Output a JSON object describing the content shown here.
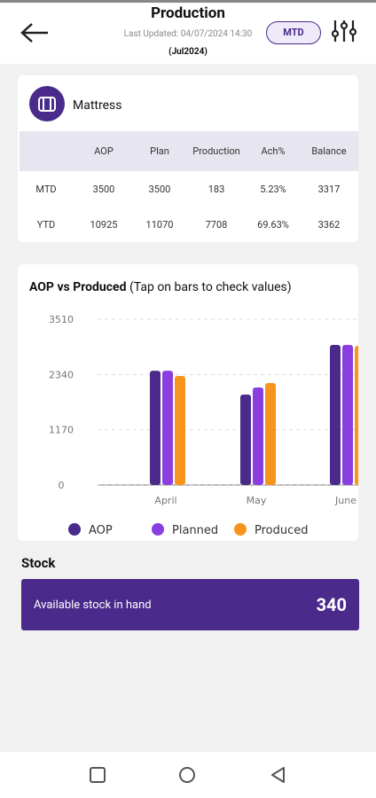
{
  "header": {
    "title": "Production",
    "last_updated": "Last Updated: 04/07/2024 14:30",
    "period": "(Jul2024)",
    "toggle": "MTD"
  },
  "summary": {
    "title": "Mattress",
    "columns": [
      "AOP",
      "Plan",
      "Production",
      "Ach%",
      "Balance"
    ],
    "rows": [
      {
        "label": "MTD",
        "cells": [
          3500,
          3500,
          183,
          "5.23%",
          3317
        ]
      },
      {
        "label": "YTD",
        "cells": [
          10925,
          11070,
          7708,
          "69.63%",
          3362
        ]
      }
    ]
  },
  "chart_data": {
    "type": "bar",
    "title": "AOP vs Produced",
    "subtitle": "(Tap on bars to check values)",
    "categories": [
      "April",
      "May",
      "June"
    ],
    "series": [
      {
        "name": "AOP",
        "color": "#4a2a8a",
        "values": [
          2420,
          1915,
          2966
        ]
      },
      {
        "name": "Planned",
        "color": "#8a3ee0",
        "values": [
          2420,
          2065,
          2966
        ]
      },
      {
        "name": "Produced",
        "color": "#f7941d",
        "values": [
          2309,
          2158,
          2947
        ]
      }
    ],
    "ylim": [
      0,
      3510
    ],
    "yticks": [
      0,
      1170,
      2340,
      3510
    ],
    "grid": true
  },
  "stock": {
    "title": "Stock",
    "label": "Available stock in hand",
    "value": 340
  }
}
